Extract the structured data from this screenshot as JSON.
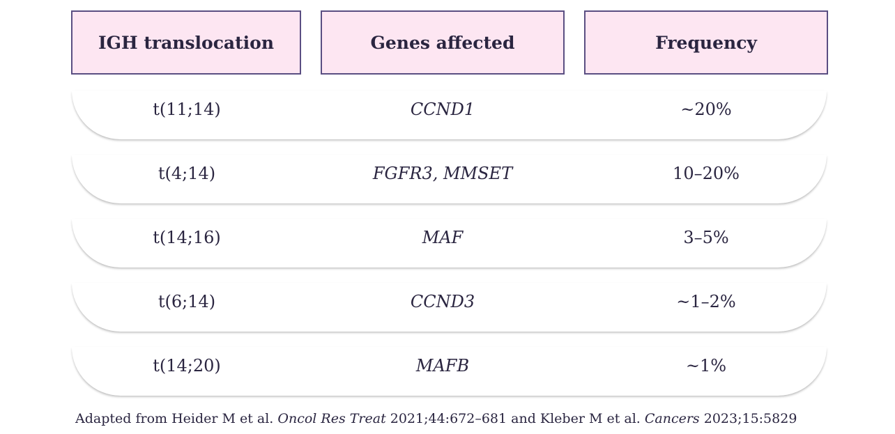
{
  "table": {
    "headers": [
      "IGH translocation",
      "Genes affected",
      "Frequency"
    ],
    "rows": [
      {
        "translocation": "t(11;14)",
        "genes": "CCND1",
        "frequency": "~20%"
      },
      {
        "translocation": "t(4;14)",
        "genes": "FGFR3, MMSET",
        "frequency": "10–20%"
      },
      {
        "translocation": "t(14;16)",
        "genes": "MAF",
        "frequency": "3–5%"
      },
      {
        "translocation": "t(6;14)",
        "genes": "CCND3",
        "frequency": "~1–2%"
      },
      {
        "translocation": "t(14;20)",
        "genes": "MAFB",
        "frequency": "~1%"
      }
    ]
  },
  "footnote": {
    "prefix": "Adapted from Heider M et al. ",
    "journal1": "Oncol Res Treat",
    "cite1": " 2021;44:672–681 and Kleber M et al. ",
    "journal2": "Cancers",
    "cite2": " 2023;15:5829"
  },
  "colors": {
    "header_fill": "#fde6f2",
    "header_border": "#5a4e82",
    "text": "#2a2540"
  }
}
